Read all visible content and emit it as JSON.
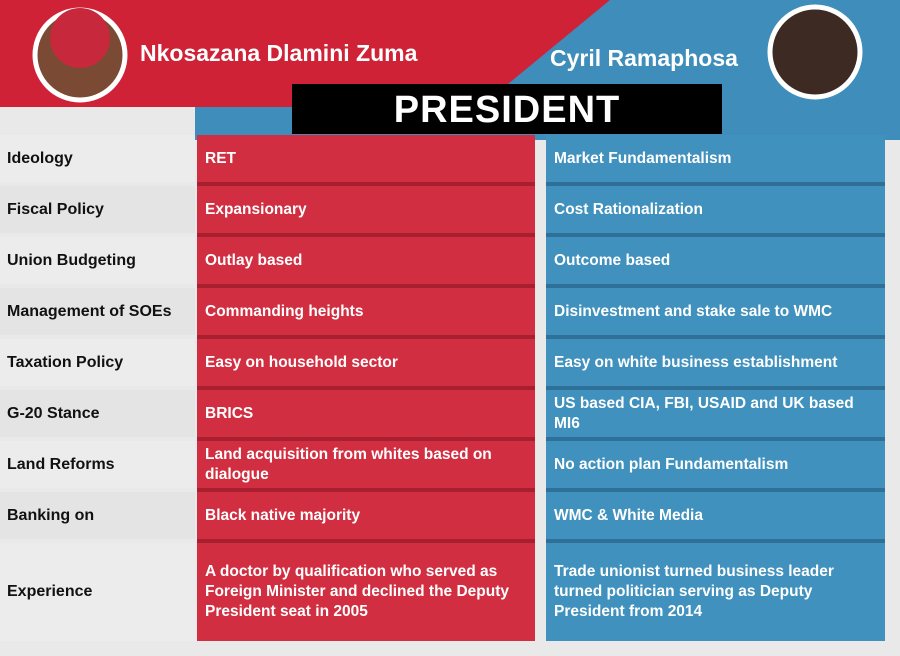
{
  "header": {
    "left_name": "Nkosazana Dlamini Zuma",
    "right_name": "Cyril Ramaphosa",
    "title": "PRESIDENT"
  },
  "table": {
    "rows": [
      {
        "label": "Ideology",
        "left": "RET",
        "right": "Market Fundamentalism"
      },
      {
        "label": "Fiscal Policy",
        "left": "Expansionary",
        "right": "Cost Rationalization"
      },
      {
        "label": "Union  Budgeting",
        "left": "Outlay based",
        "right": "Outcome based"
      },
      {
        "label": "Management  of SOEs",
        "left": "Commanding heights",
        "right": "Disinvestment and stake sale to WMC"
      },
      {
        "label": "Taxation  Policy",
        "left": "Easy on household sector",
        "right": "Easy on white business establishment"
      },
      {
        "label": "G-20 Stance",
        "left": "BRICS",
        "right": "US based CIA, FBI, USAID and UK based MI6"
      },
      {
        "label": "Land  Reforms",
        "left": "Land acquisition from whites based on dialogue",
        "right": "No action plan Fundamentalism"
      },
      {
        "label": "Banking on",
        "left": "Black native majority",
        "right": "WMC & White Media"
      },
      {
        "label": "Experience",
        "left": "A doctor by qualification who served as Foreign  Minister and declined the Deputy President seat  in 2005",
        "right": "Trade unionist turned business leader turned politician serving as Deputy President  from 2014"
      }
    ]
  }
}
